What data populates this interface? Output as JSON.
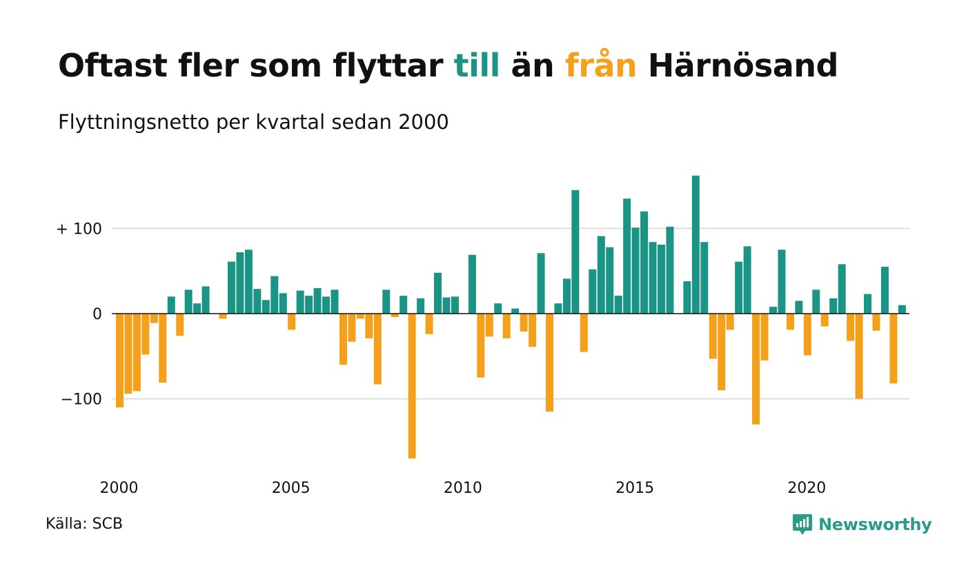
{
  "header": {
    "title_part1": "Oftast fler som flyttar ",
    "title_part2": "till",
    "title_part3": " än ",
    "title_part4": "från",
    "title_part5": " Härnösand",
    "subtitle": "Flyttningsnetto per kvartal sedan 2000"
  },
  "footer": {
    "source": "Källa: SCB",
    "brand": "Newsworthy",
    "brand_icon": "newsworthy-logo-icon"
  },
  "colors": {
    "positive": "#1a9484",
    "negative": "#f5a01a",
    "grid": "#dddddd",
    "zero_line": "#111111",
    "brand": "#2a9a8a"
  },
  "chart_data": {
    "type": "bar",
    "title": "Oftast fler som flyttar till än från Härnösand",
    "subtitle": "Flyttningsnetto per kvartal sedan 2000",
    "x_start": "2000 Q1",
    "x_ticks": [
      "2000",
      "2005",
      "2010",
      "2015",
      "2020"
    ],
    "y_ticks": [
      {
        "value": 100,
        "label": "+ 100"
      },
      {
        "value": 0,
        "label": "0"
      },
      {
        "value": -100,
        "label": "−100"
      }
    ],
    "ylim": [
      -175,
      165
    ],
    "grid": true,
    "values": [
      -110,
      -94,
      -91,
      -48,
      -11,
      -81,
      20,
      -26,
      28,
      12,
      32,
      0,
      -6,
      61,
      72,
      75,
      29,
      16,
      44,
      24,
      -19,
      27,
      21,
      30,
      20,
      28,
      -60,
      -33,
      -6,
      -29,
      -83,
      28,
      -4,
      21,
      -170,
      18,
      -24,
      48,
      19,
      20,
      0,
      69,
      -75,
      -27,
      12,
      -29,
      6,
      -21,
      -39,
      71,
      -115,
      12,
      41,
      145,
      -45,
      52,
      91,
      78,
      21,
      135,
      101,
      120,
      84,
      81,
      102,
      0,
      38,
      162,
      84,
      -53,
      -90,
      -19,
      61,
      79,
      -130,
      -55,
      8,
      75,
      -19,
      15,
      -49,
      28,
      -15,
      18,
      58,
      -32,
      -100,
      23,
      -20,
      55,
      -82,
      10
    ]
  }
}
